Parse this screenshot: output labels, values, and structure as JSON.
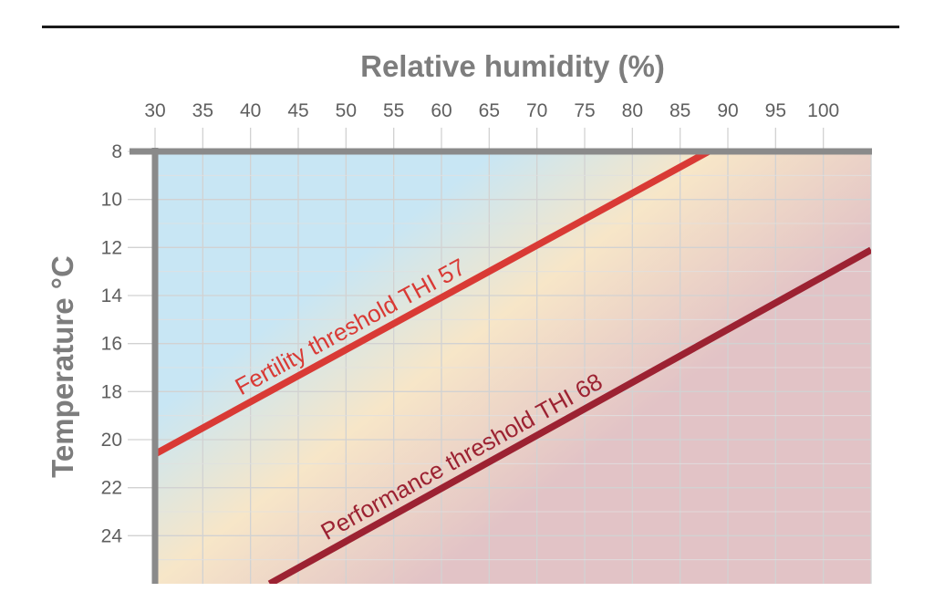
{
  "chart_data": {
    "type": "line",
    "xlabel": "Relative humidity (%)",
    "ylabel": "Temperature °C",
    "x_axis_position": "top",
    "y_axis_inverted": true,
    "xlim": [
      30,
      105
    ],
    "ylim": [
      8,
      26
    ],
    "x_ticks": [
      30,
      35,
      40,
      45,
      50,
      55,
      60,
      65,
      70,
      75,
      80,
      85,
      90,
      95,
      100
    ],
    "y_ticks": [
      8,
      10,
      12,
      14,
      16,
      18,
      20,
      22,
      24
    ],
    "grid": true,
    "series": [
      {
        "name": "Fertility threshold THI 57",
        "color": "#d93a35",
        "x": [
          30,
          88
        ],
        "y": [
          20.6,
          8
        ]
      },
      {
        "name": "Performance threshold  THI 68",
        "color": "#9c2232",
        "x": [
          42,
          105
        ],
        "y": [
          26,
          12.1
        ]
      }
    ],
    "background_gradient": {
      "colors": [
        "#c8e6f4",
        "#f7e6c8",
        "#e2c3c6"
      ],
      "description_colors": [
        "#c8e6f4",
        "#f7e6c8",
        "#e2c3c6"
      ]
    },
    "axis_color": "#8a8a8a",
    "grid_color": "#d2d2d2"
  }
}
